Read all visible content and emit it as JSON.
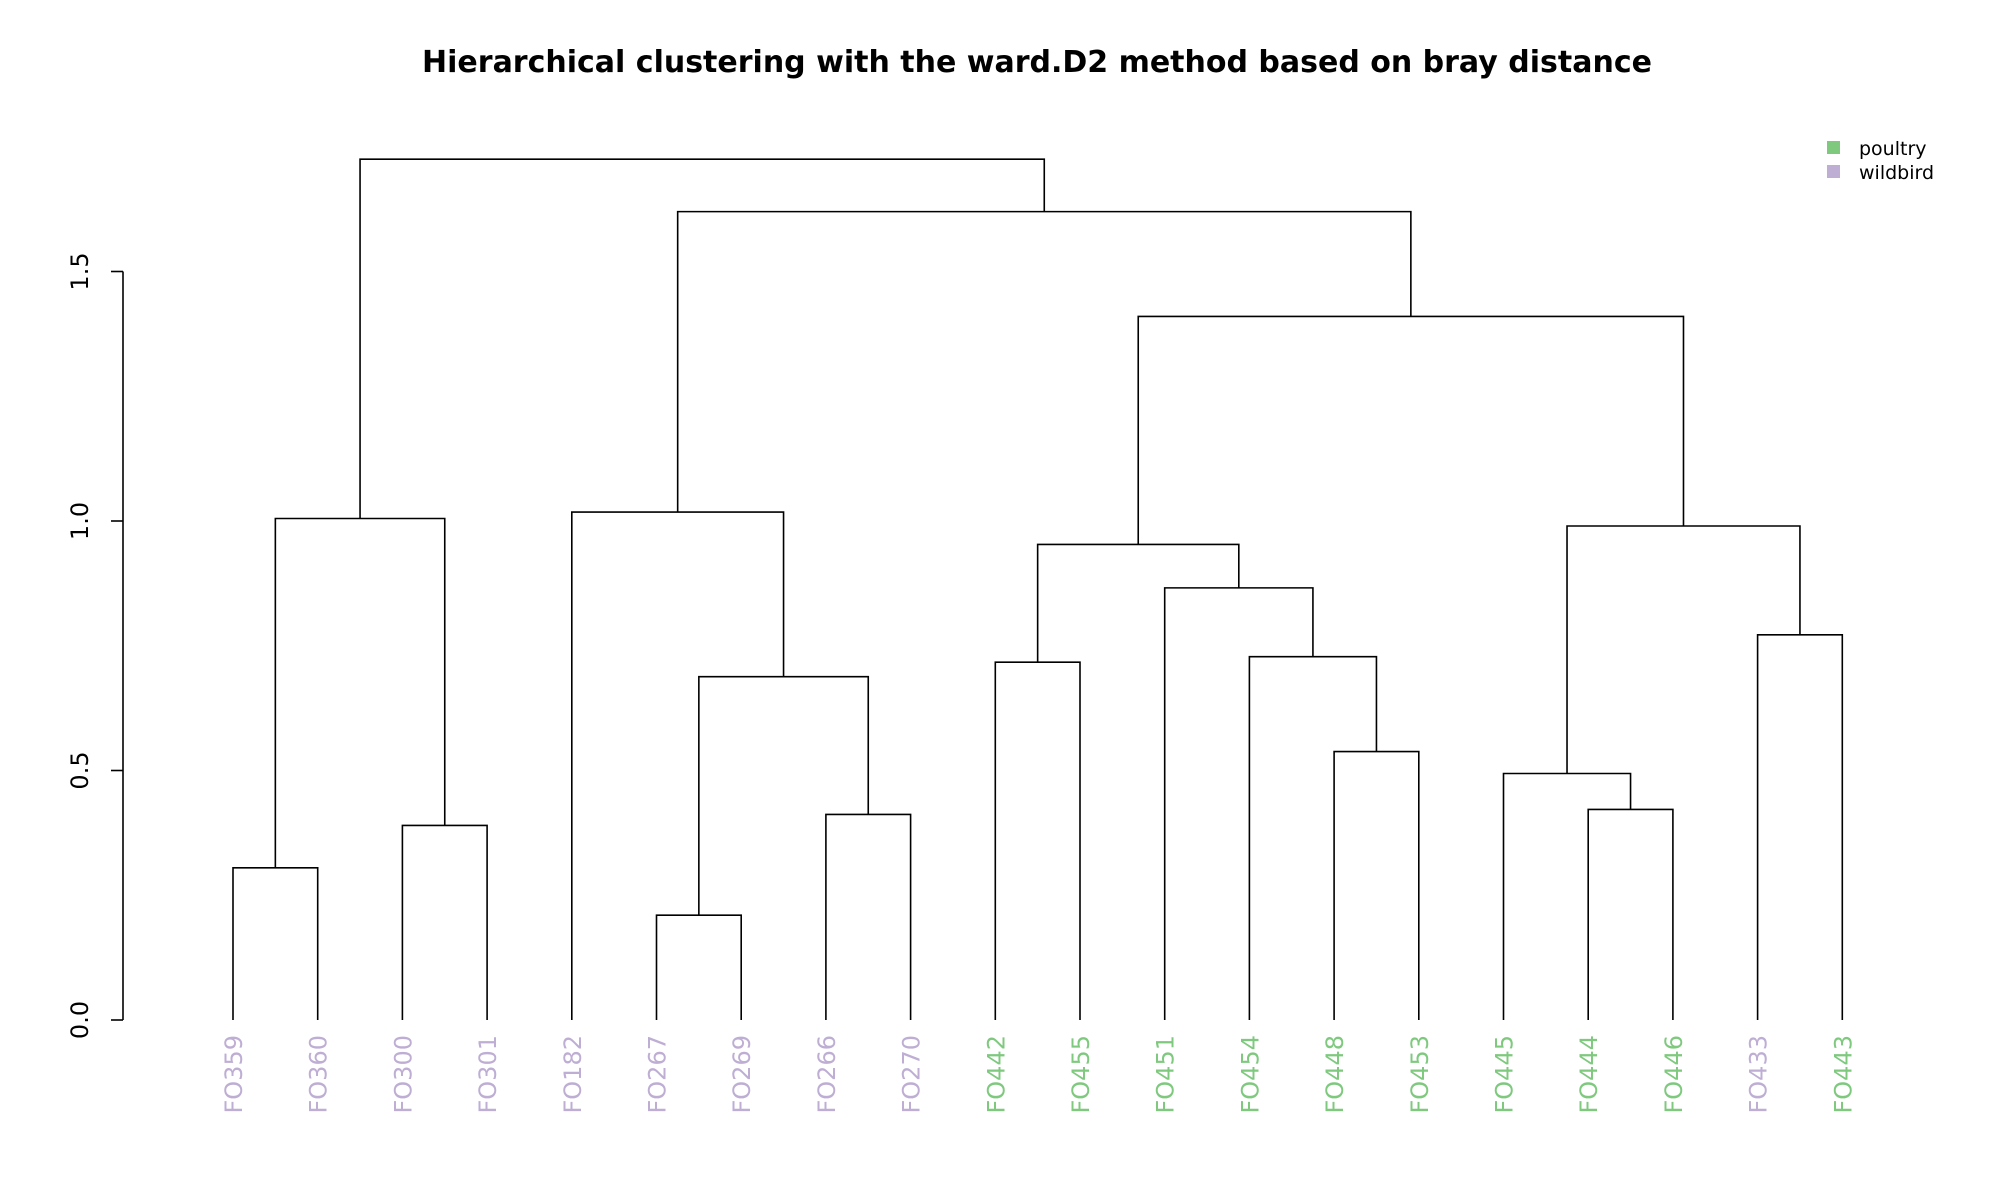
{
  "chart_data": {
    "type": "dendrogram",
    "title": "Hierarchical clustering with the ward.D2 method based on bray distance",
    "ylim": [
      0,
      1.75
    ],
    "yticks": [
      0.0,
      0.5,
      1.0,
      1.5
    ],
    "ytick_labels": [
      "0.0",
      "0.5",
      "1.0",
      "1.5"
    ],
    "leaves": [
      {
        "label": "FO359",
        "group": "wildbird"
      },
      {
        "label": "FO360",
        "group": "wildbird"
      },
      {
        "label": "FO300",
        "group": "wildbird"
      },
      {
        "label": "FO301",
        "group": "wildbird"
      },
      {
        "label": "FO182",
        "group": "wildbird"
      },
      {
        "label": "FO267",
        "group": "wildbird"
      },
      {
        "label": "FO269",
        "group": "wildbird"
      },
      {
        "label": "FO266",
        "group": "wildbird"
      },
      {
        "label": "FO270",
        "group": "wildbird"
      },
      {
        "label": "FO442",
        "group": "poultry"
      },
      {
        "label": "FO455",
        "group": "poultry"
      },
      {
        "label": "FO451",
        "group": "poultry"
      },
      {
        "label": "FO454",
        "group": "poultry"
      },
      {
        "label": "FO448",
        "group": "poultry"
      },
      {
        "label": "FO453",
        "group": "poultry"
      },
      {
        "label": "FO445",
        "group": "poultry"
      },
      {
        "label": "FO444",
        "group": "poultry"
      },
      {
        "label": "FO446",
        "group": "poultry"
      },
      {
        "label": "FO433",
        "group": "wildbird"
      },
      {
        "label": "FO443",
        "group": "poultry"
      }
    ],
    "merges": [
      {
        "left": "L1",
        "right": "L2",
        "height": 0.305
      },
      {
        "left": "L3",
        "right": "L4",
        "height": 0.39
      },
      {
        "left": "L6",
        "right": "L7",
        "height": 0.21
      },
      {
        "left": "L8",
        "right": "L9",
        "height": 0.412
      },
      {
        "left": "L10",
        "right": "L11",
        "height": 0.717
      },
      {
        "left": "L14",
        "right": "L15",
        "height": 0.538
      },
      {
        "left": "L17",
        "right": "L18",
        "height": 0.422
      },
      {
        "left": "L19",
        "right": "L20",
        "height": 0.772
      },
      {
        "left": "M1",
        "right": "M2",
        "height": 1.005
      },
      {
        "left": "M3",
        "right": "M4",
        "height": 0.688
      },
      {
        "left": "L5",
        "right": "M10",
        "height": 1.018
      },
      {
        "left": "L13",
        "right": "M6",
        "height": 0.728
      },
      {
        "left": "L12",
        "right": "M12",
        "height": 0.866
      },
      {
        "left": "M5",
        "right": "M13",
        "height": 0.953
      },
      {
        "left": "L16",
        "right": "M7",
        "height": 0.494
      },
      {
        "left": "M15",
        "right": "M8",
        "height": 0.99
      },
      {
        "left": "M14",
        "right": "M16",
        "height": 1.41
      },
      {
        "left": "M11",
        "right": "M17",
        "height": 1.62
      },
      {
        "left": "M9",
        "right": "M18",
        "height": 1.725
      }
    ],
    "legend": {
      "placement": "top-right",
      "items": [
        {
          "label": "poultry",
          "color": "#7fc97f"
        },
        {
          "label": "wildbird",
          "color": "#beaed4"
        }
      ]
    },
    "colors": {
      "poultry": "#7fc97f",
      "wildbird": "#beaed4"
    }
  }
}
